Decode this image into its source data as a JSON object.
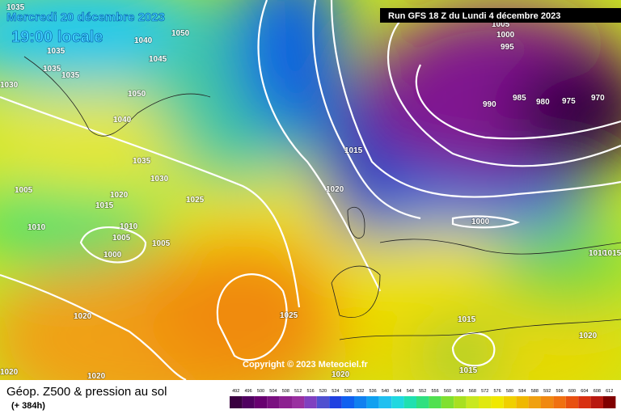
{
  "header": {
    "date": "Mercredi 20 décembre 2023",
    "time": "19:00 locale",
    "run": "Run GFS 18 Z du Lundi 4 décembre 2023"
  },
  "footer": {
    "title": "Géop. Z500 & pression au sol",
    "lead": "(+ 384h)",
    "copyright": "Copyright © 2023 Meteociel.fr"
  },
  "scale": {
    "labels": [
      "492",
      "496",
      "500",
      "504",
      "508",
      "512",
      "516",
      "520",
      "524",
      "528",
      "532",
      "536",
      "540",
      "544",
      "548",
      "552",
      "556",
      "560",
      "564",
      "568",
      "572",
      "576",
      "580",
      "584",
      "588",
      "592",
      "596",
      "600",
      "604",
      "608",
      "612"
    ]
  },
  "isobars": {
    "labels": [
      "1035",
      "1050",
      "1040",
      "1035",
      "1045",
      "1035",
      "1035",
      "1030",
      "1050",
      "1040",
      "1035",
      "1030",
      "1025",
      "1020",
      "1015",
      "1005",
      "1010",
      "1010",
      "1005",
      "1005",
      "1000",
      "1020",
      "1015",
      "1005",
      "1000",
      "995",
      "990",
      "985",
      "980",
      "975",
      "970",
      "1000",
      "1010",
      "1015",
      "1025",
      "1020",
      "1015",
      "1015",
      "1020",
      "1020",
      "1020",
      "1020"
    ]
  }
}
